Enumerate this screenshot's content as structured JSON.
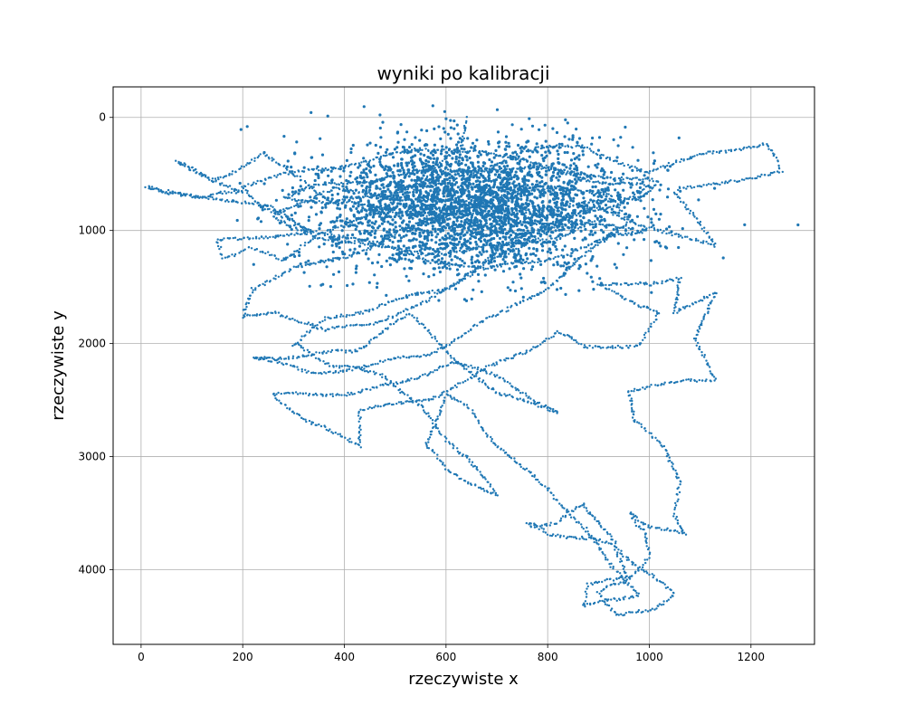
{
  "chart_data": {
    "type": "scatter",
    "title": "wyniki po kalibracji",
    "xlabel": "rzeczywiste x",
    "ylabel": "rzeczywiste y",
    "xlim": [
      -55,
      1325
    ],
    "ylim": [
      4660,
      -270
    ],
    "y_inverted": true,
    "grid": true,
    "x_ticks": [
      0,
      200,
      400,
      600,
      800,
      1000,
      1200
    ],
    "y_ticks": [
      0,
      1000,
      2000,
      3000,
      4000
    ],
    "x_tick_labels": [
      "0",
      "200",
      "400",
      "600",
      "800",
      "1000",
      "1200"
    ],
    "y_tick_labels": [
      "0",
      "1000",
      "2000",
      "3000",
      "4000"
    ],
    "series": [
      {
        "color": "#1f77b4",
        "marker": "dot",
        "trajectories": [
          [
            [
              640,
              0
            ],
            [
              630,
              250
            ],
            [
              560,
              550
            ],
            [
              470,
              700
            ],
            [
              380,
              750
            ],
            [
              330,
              600
            ],
            [
              240,
              330
            ],
            [
              140,
              560
            ],
            [
              70,
              400
            ],
            [
              200,
              650
            ],
            [
              120,
              720
            ],
            [
              10,
              600
            ]
          ],
          [
            [
              10,
              600
            ],
            [
              250,
              800
            ],
            [
              330,
              1000
            ],
            [
              150,
              1100
            ],
            [
              160,
              1230
            ],
            [
              210,
              1170
            ],
            [
              280,
              1250
            ],
            [
              330,
              1100
            ],
            [
              420,
              900
            ],
            [
              520,
              700
            ],
            [
              640,
              500
            ],
            [
              760,
              300
            ],
            [
              870,
              250
            ],
            [
              1000,
              500
            ],
            [
              1120,
              300
            ],
            [
              1230,
              240
            ],
            [
              1260,
              470
            ],
            [
              1050,
              640
            ]
          ],
          [
            [
              1050,
              640
            ],
            [
              1130,
              1150
            ],
            [
              960,
              900
            ],
            [
              890,
              800
            ],
            [
              760,
              1000
            ],
            [
              700,
              1200
            ],
            [
              640,
              1400
            ],
            [
              560,
              1650
            ],
            [
              460,
              1800
            ],
            [
              360,
              1900
            ],
            [
              260,
              1700
            ],
            [
              200,
              1780
            ],
            [
              220,
              1500
            ],
            [
              300,
              1350
            ],
            [
              420,
              1200
            ],
            [
              520,
              1000
            ],
            [
              620,
              820
            ],
            [
              720,
              700
            ],
            [
              820,
              600
            ],
            [
              920,
              700
            ],
            [
              960,
              900
            ],
            [
              880,
              1200
            ],
            [
              800,
              1500
            ],
            [
              720,
              1700
            ]
          ],
          [
            [
              720,
              1700
            ],
            [
              640,
              1900
            ],
            [
              560,
              2100
            ],
            [
              450,
              2200
            ],
            [
              330,
              2250
            ],
            [
              220,
              2130
            ],
            [
              320,
              2100
            ],
            [
              420,
              2080
            ],
            [
              470,
              1900
            ],
            [
              530,
              1750
            ]
          ],
          [
            [
              530,
              1750
            ],
            [
              600,
              2050
            ],
            [
              700,
              2450
            ],
            [
              820,
              2600
            ],
            [
              700,
              2300
            ],
            [
              610,
              2150
            ],
            [
              520,
              2350
            ],
            [
              430,
              2420
            ],
            [
              320,
              2460
            ],
            [
              260,
              2440
            ],
            [
              330,
              2700
            ],
            [
              430,
              2900
            ],
            [
              430,
              2600
            ],
            [
              560,
              2500
            ],
            [
              650,
              2300
            ],
            [
              740,
              2100
            ],
            [
              820,
              1900
            ],
            [
              880,
              2050
            ]
          ],
          [
            [
              880,
              2050
            ],
            [
              980,
              2000
            ],
            [
              1020,
              1750
            ],
            [
              960,
              1600
            ],
            [
              900,
              1500
            ],
            [
              980,
              1450
            ],
            [
              1000,
              1500
            ],
            [
              1060,
              1400
            ],
            [
              1050,
              1750
            ],
            [
              1130,
              1530
            ],
            [
              1090,
              1980
            ],
            [
              1130,
              2300
            ],
            [
              1060,
              2350
            ],
            [
              960,
              2400
            ],
            [
              970,
              2700
            ],
            [
              1030,
              2900
            ],
            [
              1060,
              3250
            ],
            [
              1050,
              3500
            ],
            [
              1070,
              3700
            ],
            [
              1000,
              3600
            ],
            [
              960,
              3500
            ]
          ],
          [
            [
              960,
              3500
            ],
            [
              990,
              3650
            ],
            [
              1000,
              3900
            ],
            [
              950,
              4100
            ],
            [
              900,
              4200
            ],
            [
              940,
              4400
            ],
            [
              1000,
              4380
            ],
            [
              1050,
              4200
            ],
            [
              980,
              4000
            ],
            [
              940,
              3800
            ],
            [
              900,
              3600
            ],
            [
              870,
              3400
            ],
            [
              820,
              3600
            ],
            [
              760,
              3580
            ],
            [
              800,
              3700
            ],
            [
              870,
              3700
            ],
            [
              930,
              3800
            ],
            [
              960,
              4050
            ],
            [
              880,
              4150
            ],
            [
              870,
              4300
            ],
            [
              940,
              4280
            ],
            [
              980,
              4200
            ]
          ],
          [
            [
              980,
              4200
            ],
            [
              920,
              3950
            ],
            [
              880,
              3650
            ],
            [
              800,
              3300
            ],
            [
              700,
              2900
            ],
            [
              650,
              2600
            ],
            [
              600,
              2450
            ],
            [
              560,
              2900
            ],
            [
              600,
              3100
            ],
            [
              700,
              3350
            ],
            [
              640,
              3000
            ],
            [
              590,
              2800
            ],
            [
              540,
              2500
            ],
            [
              480,
              2300
            ],
            [
              400,
              2200
            ],
            [
              350,
              2150
            ],
            [
              300,
              2000
            ]
          ],
          [
            [
              300,
              2000
            ],
            [
              360,
              1800
            ],
            [
              440,
              1700
            ],
            [
              520,
              1600
            ],
            [
              600,
              1500
            ],
            [
              680,
              1300
            ],
            [
              760,
              1100
            ],
            [
              840,
              900
            ],
            [
              940,
              750
            ],
            [
              1000,
              620
            ],
            [
              900,
              560
            ],
            [
              780,
              430
            ],
            [
              660,
              280
            ],
            [
              540,
              300
            ],
            [
              420,
              400
            ],
            [
              300,
              500
            ],
            [
              200,
              600
            ],
            [
              240,
              820
            ],
            [
              330,
              980
            ],
            [
              440,
              1100
            ],
            [
              560,
              1250
            ],
            [
              680,
              1350
            ],
            [
              800,
              1250
            ],
            [
              900,
              1100
            ],
            [
              990,
              1000
            ]
          ],
          [
            [
              990,
              1000
            ],
            [
              860,
              950
            ],
            [
              740,
              900
            ],
            [
              620,
              870
            ],
            [
              500,
              820
            ],
            [
              390,
              760
            ],
            [
              280,
              700
            ],
            [
              360,
              600
            ],
            [
              470,
              540
            ],
            [
              580,
              480
            ],
            [
              700,
              440
            ],
            [
              820,
              470
            ],
            [
              930,
              520
            ],
            [
              1020,
              580
            ],
            [
              980,
              700
            ],
            [
              860,
              780
            ],
            [
              740,
              820
            ],
            [
              620,
              760
            ],
            [
              500,
              700
            ],
            [
              380,
              650
            ],
            [
              300,
              760
            ],
            [
              260,
              900
            ],
            [
              350,
              1050
            ],
            [
              460,
              1150
            ],
            [
              580,
              1200
            ],
            [
              700,
              1150
            ],
            [
              820,
              1050
            ],
            [
              900,
              920
            ]
          ]
        ]
      }
    ]
  }
}
